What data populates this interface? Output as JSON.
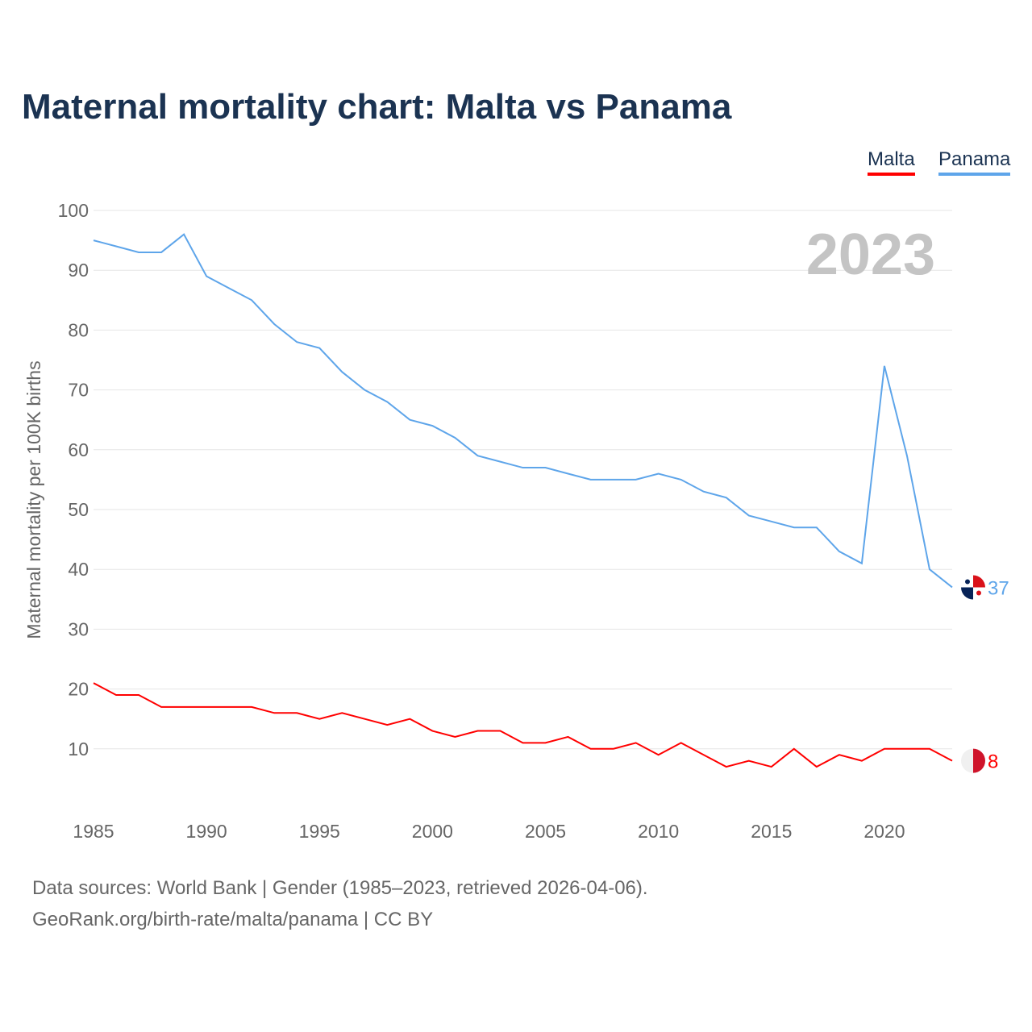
{
  "chart_data": {
    "type": "line",
    "title": "Maternal mortality chart: Malta vs Panama",
    "ylabel": "Maternal mortality per 100K births",
    "xlabel": "",
    "ylim": [
      0,
      100
    ],
    "xlim": [
      1985,
      2023
    ],
    "yticks": [
      10,
      20,
      30,
      40,
      50,
      60,
      70,
      80,
      90,
      100
    ],
    "xticks": [
      1985,
      1990,
      1995,
      2000,
      2005,
      2010,
      2015,
      2020
    ],
    "grid": true,
    "legend_position": "top-right",
    "year_label": "2023",
    "x": [
      1985,
      1986,
      1987,
      1988,
      1989,
      1990,
      1991,
      1992,
      1993,
      1994,
      1995,
      1996,
      1997,
      1998,
      1999,
      2000,
      2001,
      2002,
      2003,
      2004,
      2005,
      2006,
      2007,
      2008,
      2009,
      2010,
      2011,
      2012,
      2013,
      2014,
      2015,
      2016,
      2017,
      2018,
      2019,
      2020,
      2021,
      2022,
      2023
    ],
    "series": [
      {
        "name": "Malta",
        "color": "#ff0000",
        "end_label": "8",
        "values": [
          21,
          19,
          19,
          17,
          17,
          17,
          17,
          17,
          16,
          16,
          15,
          16,
          15,
          14,
          15,
          13,
          12,
          13,
          13,
          11,
          11,
          12,
          10,
          10,
          11,
          9,
          11,
          9,
          7,
          8,
          7,
          10,
          7,
          9,
          8,
          10,
          10,
          10,
          8
        ]
      },
      {
        "name": "Panama",
        "color": "#5ea5ea",
        "end_label": "37",
        "values": [
          95,
          94,
          93,
          93,
          96,
          89,
          87,
          85,
          81,
          78,
          77,
          73,
          70,
          68,
          65,
          64,
          62,
          59,
          58,
          57,
          57,
          56,
          55,
          55,
          55,
          56,
          55,
          53,
          52,
          49,
          48,
          47,
          47,
          43,
          41,
          74,
          59,
          40,
          37
        ]
      }
    ]
  },
  "footer": {
    "line1": "Data sources: World Bank | Gender (1985–2023, retrieved 2026-04-06).",
    "line2": "GeoRank.org/birth-rate/malta/panama | CC BY"
  }
}
